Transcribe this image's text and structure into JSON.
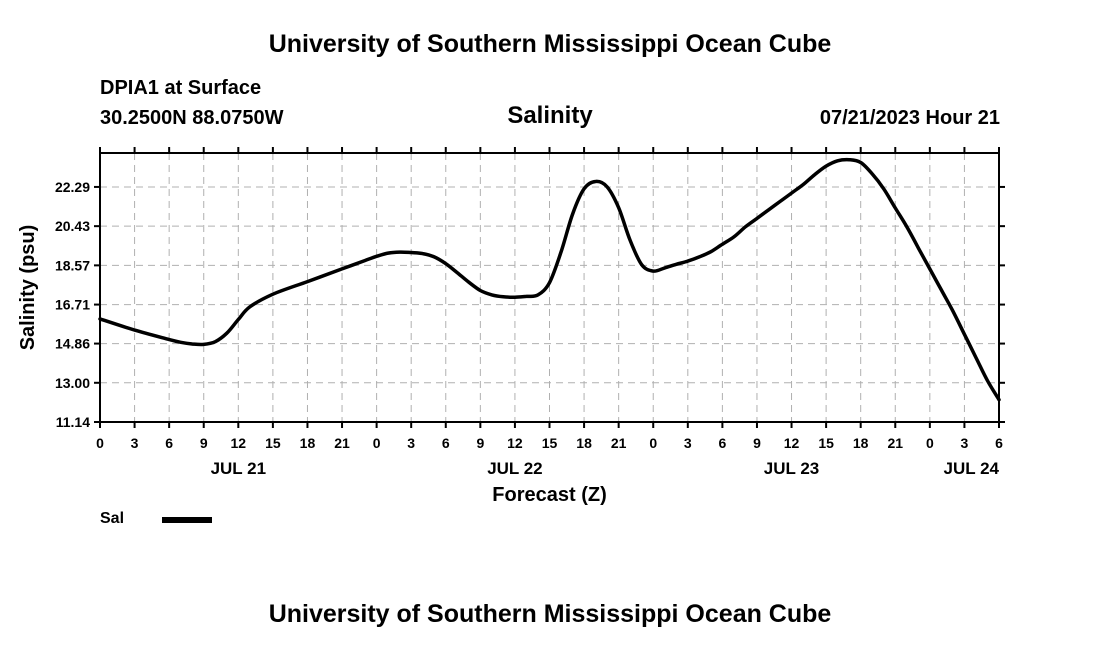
{
  "header": {
    "title": "University of Southern Mississippi Ocean Cube",
    "station": "DPIA1 at Surface",
    "coords": "30.2500N  88.0750W",
    "datetime": "07/21/2023 Hour 21",
    "footer_title": "University of Southern Mississippi Ocean Cube"
  },
  "chart_data": {
    "type": "line",
    "title": "Salinity",
    "xlabel": "Forecast (Z)",
    "ylabel": "Salinity (psu)",
    "x_unit": "hours from JUL 21 00Z",
    "xlim": [
      0,
      78
    ],
    "ylim": [
      11.14,
      23.9
    ],
    "y_ticks": [
      11.14,
      13.0,
      14.86,
      16.71,
      18.57,
      20.43,
      22.29
    ],
    "y_tick_labels": [
      "11.14",
      "13.00",
      "14.86",
      "16.71",
      "18.57",
      "20.43",
      "22.29"
    ],
    "x_ticks": [
      0,
      3,
      6,
      9,
      12,
      15,
      18,
      21,
      24,
      27,
      30,
      33,
      36,
      39,
      42,
      45,
      48,
      51,
      54,
      57,
      60,
      63,
      66,
      69,
      72,
      75,
      78
    ],
    "x_tick_labels": [
      "0",
      "3",
      "6",
      "9",
      "12",
      "15",
      "18",
      "21",
      "0",
      "3",
      "6",
      "9",
      "12",
      "15",
      "18",
      "21",
      "0",
      "3",
      "6",
      "9",
      "12",
      "15",
      "18",
      "21",
      "0",
      "3",
      "6"
    ],
    "date_labels": [
      {
        "x": 12,
        "text": "JUL 21"
      },
      {
        "x": 36,
        "text": "JUL 22"
      },
      {
        "x": 60,
        "text": "JUL 23"
      },
      {
        "x": 78,
        "text": "JUL 24"
      }
    ],
    "grid": true,
    "legend_position": "bottom-left",
    "series": [
      {
        "name": "Sal",
        "color": "#000000",
        "x": [
          0,
          3,
          6,
          7,
          8,
          9,
          10,
          11,
          12,
          13,
          15,
          18,
          21,
          22,
          23,
          24,
          25,
          26,
          27,
          28,
          29,
          30,
          31,
          32,
          33,
          34,
          35,
          36,
          37,
          38,
          39,
          40,
          41,
          42,
          43,
          44,
          45,
          46,
          47,
          48,
          49,
          50,
          51,
          52,
          53,
          54,
          55,
          56,
          57,
          58,
          59,
          60,
          61,
          62,
          63,
          64,
          65,
          66,
          67,
          68,
          69,
          70,
          71,
          72,
          73,
          74,
          75,
          76,
          77,
          78
        ],
        "y": [
          16.03,
          15.5,
          15.05,
          14.92,
          14.84,
          14.82,
          14.95,
          15.35,
          16.0,
          16.6,
          17.2,
          17.8,
          18.4,
          18.6,
          18.8,
          19.0,
          19.15,
          19.2,
          19.18,
          19.13,
          18.97,
          18.65,
          18.22,
          17.77,
          17.38,
          17.17,
          17.08,
          17.06,
          17.1,
          17.17,
          17.75,
          19.2,
          21.0,
          22.2,
          22.55,
          22.29,
          21.3,
          19.75,
          18.6,
          18.3,
          18.45,
          18.62,
          18.77,
          18.97,
          19.22,
          19.57,
          19.92,
          20.4,
          20.8,
          21.2,
          21.6,
          22.0,
          22.4,
          22.87,
          23.28,
          23.53,
          23.58,
          23.45,
          22.91,
          22.2,
          21.29,
          20.4,
          19.4,
          18.4,
          17.4,
          16.4,
          15.3,
          14.2,
          13.1,
          12.2
        ]
      }
    ]
  }
}
